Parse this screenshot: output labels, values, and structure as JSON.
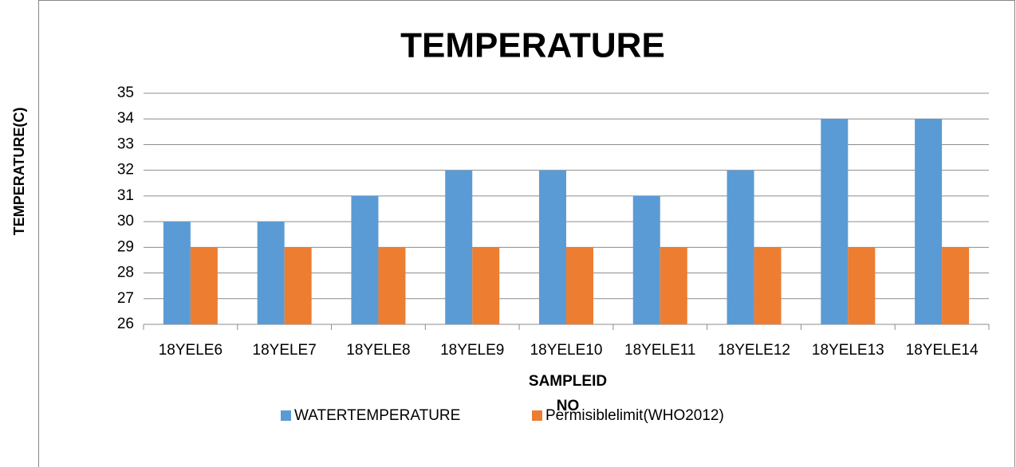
{
  "chart_data": {
    "type": "bar",
    "title": "TEMPERATURE",
    "ylabel": "TEMPERATURE(C)",
    "xlabel": [
      "SAMPLEID",
      "NO"
    ],
    "categories": [
      "18YELE6",
      "18YELE7",
      "18YELE8",
      "18YELE9",
      "18YELE10",
      "18YELE11",
      "18YELE12",
      "18YELE13",
      "18YELE14"
    ],
    "series": [
      {
        "name": "WATERTEMPERATURE",
        "color": "#5b9bd5",
        "values": [
          30,
          30,
          31,
          32,
          32,
          31,
          32,
          34,
          34
        ]
      },
      {
        "name": "Permisiblelimit(WHO2012)",
        "color": "#ed7d31",
        "values": [
          29,
          29,
          29,
          29,
          29,
          29,
          29,
          29,
          29
        ]
      }
    ],
    "ylim": [
      26,
      35
    ],
    "yticks": [
      26,
      27,
      28,
      29,
      30,
      31,
      32,
      33,
      34,
      35
    ],
    "grid": true,
    "legend": "bottom"
  }
}
